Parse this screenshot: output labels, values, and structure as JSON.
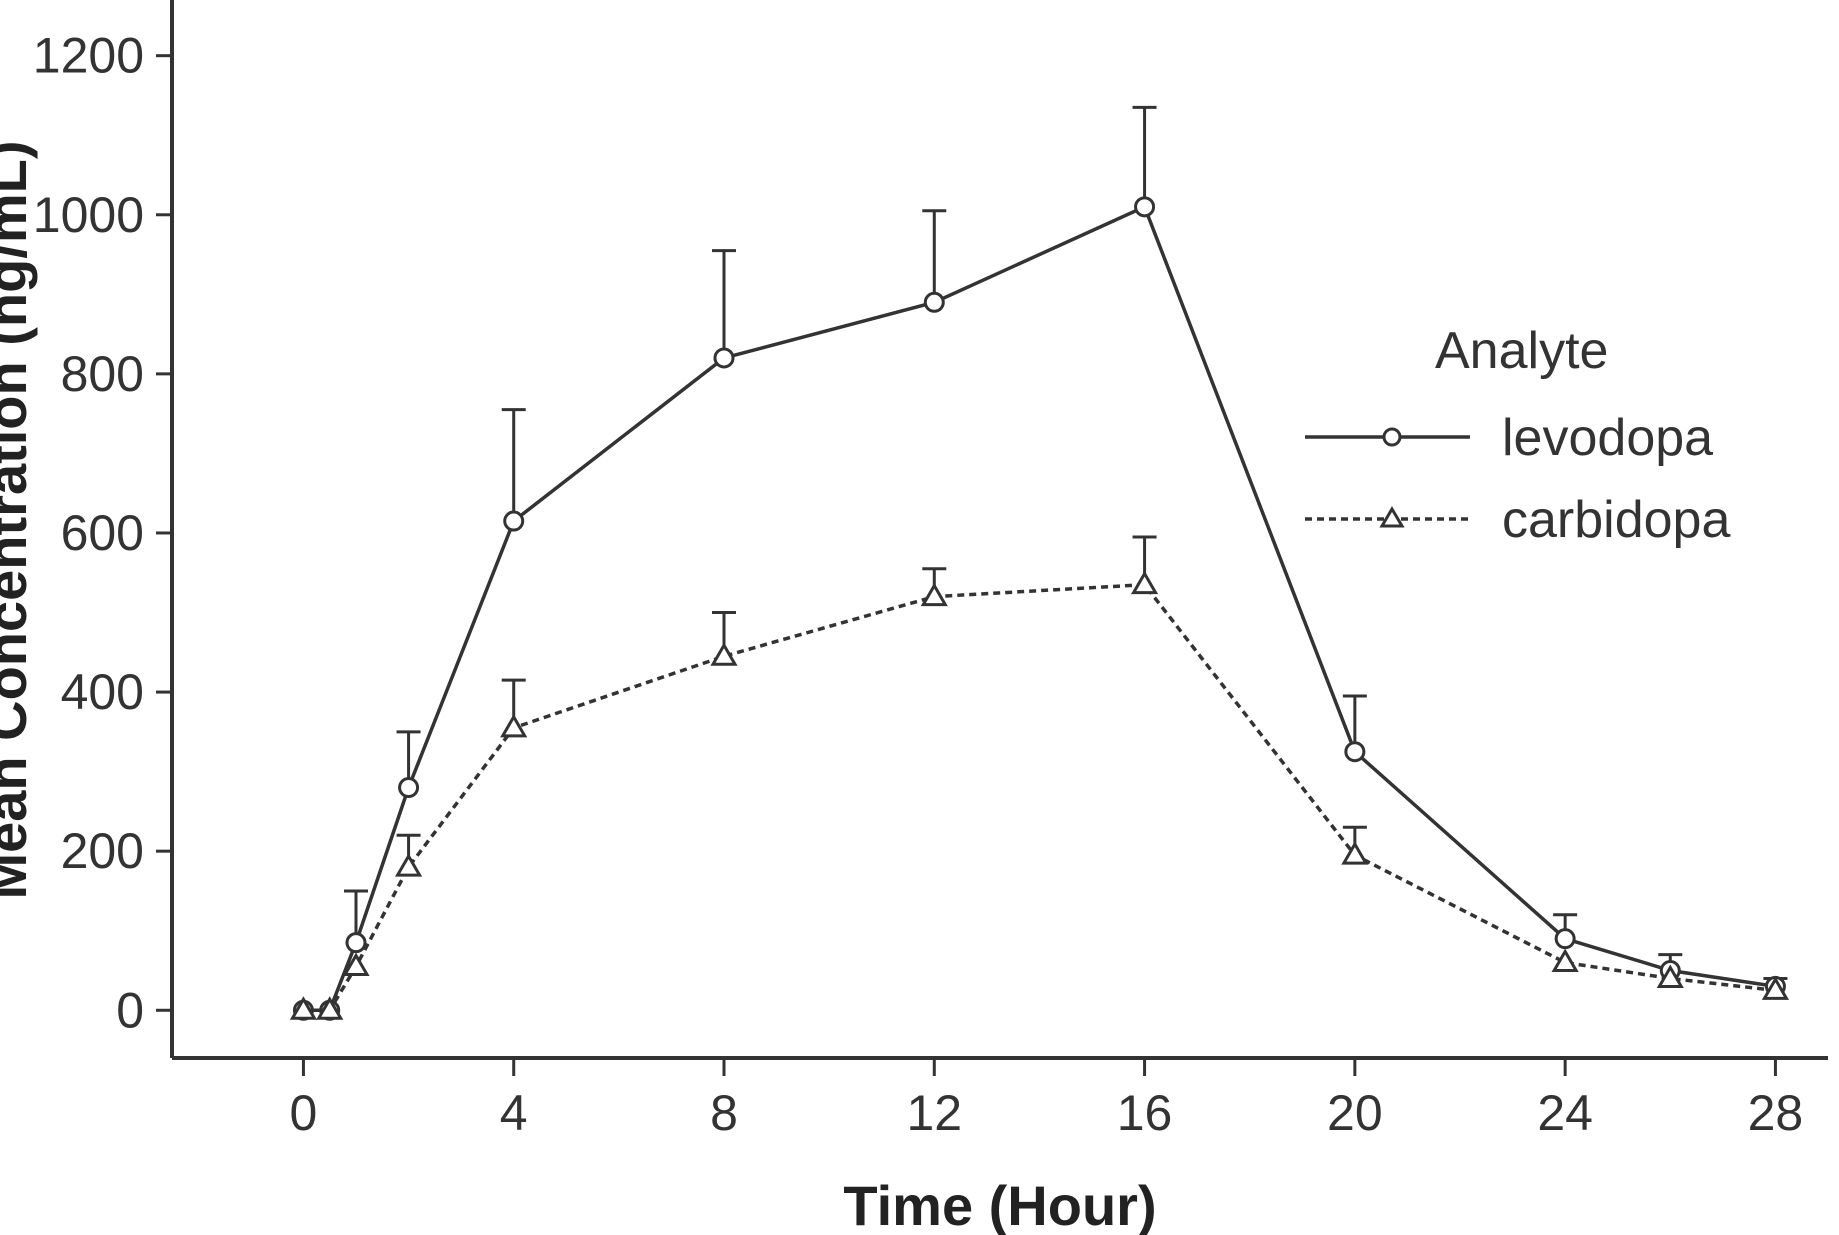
{
  "chart_data": {
    "type": "line",
    "title": "",
    "xlabel": "Time (Hour)",
    "ylabel": "Mean Concentration (ng/mL)",
    "xlim": [
      -2.5,
      29
    ],
    "ylim": [
      -60,
      1270
    ],
    "xticks": [
      0,
      4,
      8,
      12,
      16,
      20,
      24,
      28
    ],
    "yticks": [
      0,
      200,
      400,
      600,
      800,
      1000,
      1200
    ],
    "legend": {
      "title": "Analyte",
      "position": "right"
    },
    "series": [
      {
        "name": "levodopa",
        "style": "solid",
        "marker": "circle",
        "x": [
          0,
          0.5,
          1,
          2,
          4,
          8,
          12,
          16,
          20,
          24,
          26,
          28
        ],
        "y": [
          0,
          0,
          85,
          280,
          615,
          820,
          890,
          1010,
          325,
          90,
          50,
          30
        ],
        "err_upper": [
          null,
          null,
          150,
          350,
          755,
          955,
          1005,
          1135,
          395,
          120,
          70,
          40
        ]
      },
      {
        "name": "carbidopa",
        "style": "dashed",
        "marker": "triangle",
        "x": [
          0,
          0.5,
          1,
          2,
          4,
          8,
          12,
          16,
          20,
          24,
          26,
          28
        ],
        "y": [
          0,
          0,
          55,
          180,
          355,
          445,
          520,
          535,
          195,
          60,
          40,
          25
        ],
        "err_upper": [
          null,
          null,
          null,
          220,
          415,
          500,
          555,
          595,
          230,
          null,
          null,
          null
        ]
      }
    ]
  }
}
